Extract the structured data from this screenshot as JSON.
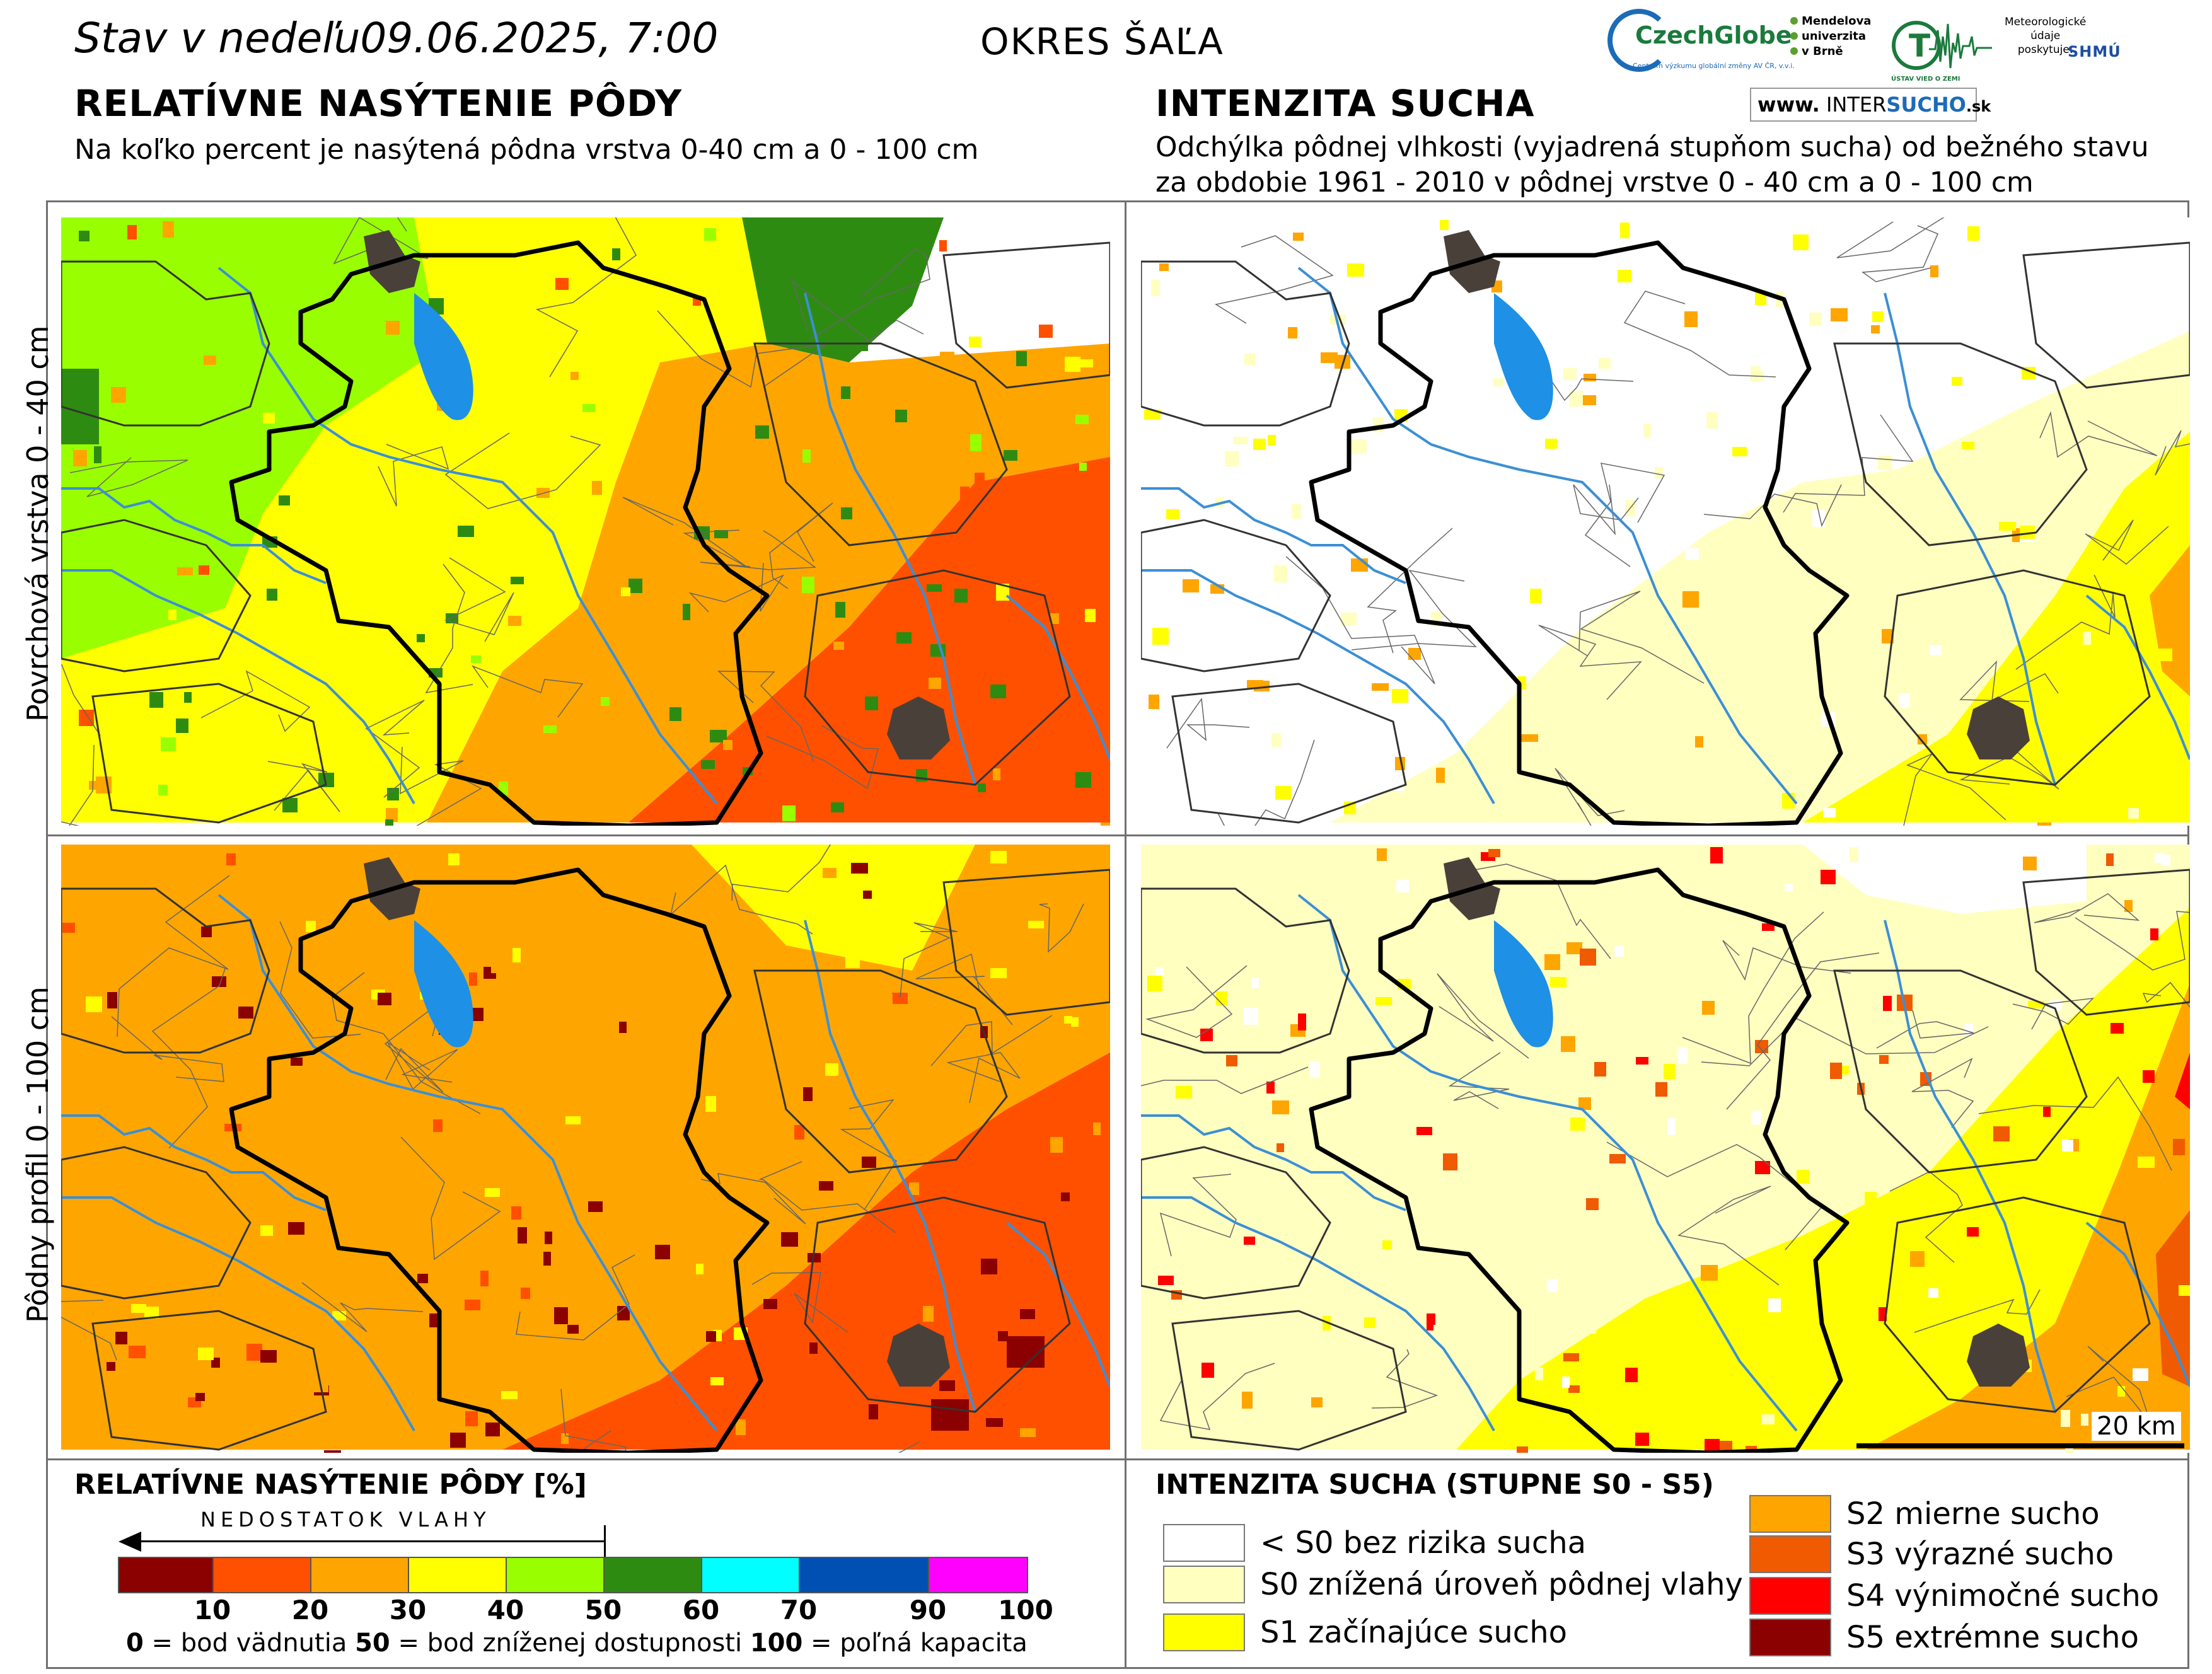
{
  "header": {
    "status_prefix": "Stav v nedeľu",
    "status_date": "09.06.2025, 7:00",
    "district": "OKRES ŠAĽA",
    "left_title": "RELATÍVNE NASÝTENIE PÔDY",
    "left_subtitle": "Na koľko percent je nasýtená pôdna vrstva 0-40 cm a 0 - 100 cm",
    "right_title": "INTENZITA SUCHA",
    "right_subtitle_1": "Odchýlka pôdnej vlhkosti (vyjadrená stupňom sucha) od bežného stavu",
    "right_subtitle_2": "za obdobie 1961 - 2010 v pôdnej vrstve 0 - 40 cm a 0 - 100 cm"
  },
  "logos": {
    "czechglobe": "CzechGlobe",
    "czechglobe_sub": "Centrum výzkumu globální změny AV ČR, v.v.i.",
    "mendel_1": "Mendelova",
    "mendel_2": "univerzita",
    "mendel_3": "v Brně",
    "ustav": "ÚSTAV VIED O ZEMI",
    "meteo_1": "Meteorologické",
    "meteo_2": "údaje",
    "meteo_3": "poskytuje:",
    "shmu": "SHMÚ",
    "intersucho_www": "www.",
    "intersucho_a": "INTER",
    "intersucho_b": "SUCHO",
    "intersucho_dom": ".sk"
  },
  "rows": {
    "top_label": "Povrchová vrstva 0 - 40 cm",
    "bottom_label": "Pôdny profil 0 - 100 cm"
  },
  "map": {
    "scale_label": "20 km",
    "colors": {
      "boundary": "#000000",
      "river": "#3b8fd6",
      "water": "#1e90e6",
      "town": "#4a403a"
    }
  },
  "legend_saturation": {
    "title": "RELATÍVNE NASÝTENIE PÔDY [%]",
    "arrow_label": "NEDOSTATOK VLAHY",
    "segments": [
      {
        "from": 0,
        "to": 10,
        "color": "#8b0000"
      },
      {
        "from": 10,
        "to": 20,
        "color": "#ff5000"
      },
      {
        "from": 20,
        "to": 30,
        "color": "#ffa500"
      },
      {
        "from": 30,
        "to": 40,
        "color": "#ffff00"
      },
      {
        "from": 40,
        "to": 50,
        "color": "#99ff00"
      },
      {
        "from": 50,
        "to": 60,
        "color": "#2e8b12"
      },
      {
        "from": 60,
        "to": 70,
        "color": "#00ffff"
      },
      {
        "from": 70,
        "to": 90,
        "color": "#0050b4"
      },
      {
        "from": 90,
        "to": 100,
        "color": "#ff00ff"
      }
    ],
    "ticks": [
      "10",
      "20",
      "30",
      "40",
      "50",
      "60",
      "70",
      "90",
      "100"
    ],
    "note_0": "0",
    "note_0_text": " = bod vädnutia ",
    "note_50": "50",
    "note_50_text": " = bod zníženej dostupnosti ",
    "note_100": "100",
    "note_100_text": " = poľná kapacita"
  },
  "legend_drought": {
    "title": "INTENZITA SUCHA (STUPNE S0 - S5)",
    "classes": [
      {
        "label": "< S0 bez rizika sucha",
        "color": "#ffffff"
      },
      {
        "label": "S0 znížená úroveň pôdnej vlahy",
        "color": "#ffffc0"
      },
      {
        "label": "S1 začínajúce sucho",
        "color": "#ffff00"
      },
      {
        "label": "S2 mierne sucho",
        "color": "#ffa500"
      },
      {
        "label": "S3 výrazné sucho",
        "color": "#f05a00"
      },
      {
        "label": "S4 výnimočné sucho",
        "color": "#ff0000"
      },
      {
        "label": "S5 extrémne sucho",
        "color": "#8b0000"
      }
    ]
  }
}
